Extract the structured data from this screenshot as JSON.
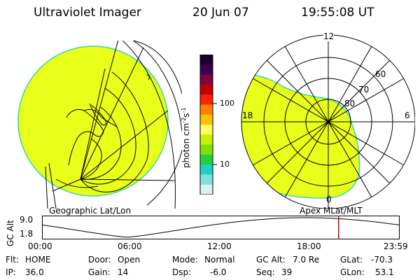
{
  "header": {
    "instrument": "Ultraviolet Imager",
    "date": "20 Jun 07",
    "time": "19:55:08 UT"
  },
  "left_panel": {
    "caption": "Geographic Lat/Lon"
  },
  "right_panel": {
    "caption": "Apex  MLat/MLT",
    "mlt_labels": {
      "top": "12",
      "left": "18",
      "right": "6",
      "bottom": "0"
    },
    "lat_labels": [
      "60",
      "70",
      "80"
    ]
  },
  "colorbar": {
    "label": "photon cm",
    "label_sup1": "-2",
    "label_mid": "s",
    "label_sup2": "-1",
    "ticks": [
      "100",
      "10"
    ],
    "colors": [
      "#1a0030",
      "#3a0050",
      "#800040",
      "#c00000",
      "#ff2000",
      "#ff8000",
      "#ffc000",
      "#ffff60",
      "#c8f000",
      "#80e000",
      "#20d040",
      "#20d0c0",
      "#80e0e0",
      "#d8f0f0"
    ]
  },
  "altitude_strip": {
    "ylabel": "GC Alt",
    "yticks": [
      "9.0",
      "1.8"
    ],
    "xticks": [
      "00:00",
      "06:00",
      "12:00",
      "18:00",
      "23:59"
    ],
    "marker_time": "19:55"
  },
  "footer": {
    "flt_label": "Flt:",
    "flt_value": "HOME",
    "ip_label": "IP:",
    "ip_value": "36.0",
    "door_label": "Door:",
    "door_value": "Open",
    "gain_label": "Gain:",
    "gain_value": "14",
    "mode_label": "Mode:",
    "mode_value": "Normal",
    "dsp_label": "Dsp:",
    "dsp_value": "-6.0",
    "gcalt_label": "GC Alt:",
    "gcalt_value": "7.0 Re",
    "seq_label": "Seq:",
    "seq_value": "39",
    "glat_label": "GLat:",
    "glat_value": "-70.3",
    "glon_label": "GLon:",
    "glon_value": "53.1"
  },
  "colors": {
    "aurora_fill": "#e8ff1a",
    "aurora_edge": "#30d8b0",
    "marker": "#cc0000"
  }
}
